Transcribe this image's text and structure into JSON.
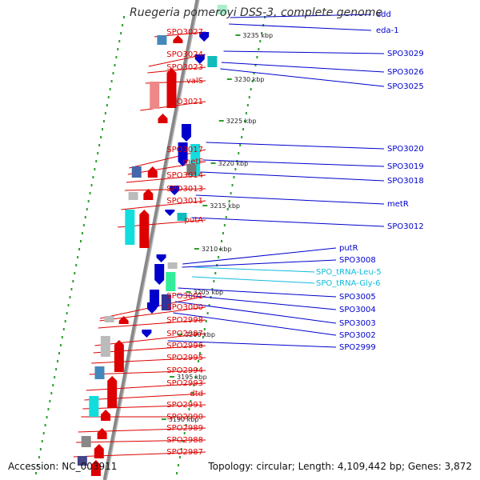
{
  "title": "Ruegeria pomeroyi DSS-3, complete genome",
  "footer": {
    "accession": "Accession: NC_003911",
    "topology": "Topology: circular; Length: 4,109,442 bp; Genes: 3,872"
  },
  "colors": {
    "forward_gene": "#dd0000",
    "reverse_gene": "#0000cc",
    "rna_gene": "#11bbdd",
    "backbone": "#888888",
    "feature_track": "#2e9e2e"
  },
  "scale_labels": [
    "3235 kbp",
    "3230 kbp",
    "3225 kbp",
    "3220 kbp",
    "3215 kbp",
    "3210 kbp",
    "3205 kbp",
    "3200 kbp",
    "3195 kbp",
    "3190 kbp"
  ],
  "forward_genes": [
    "SPO3027",
    "SPO3024",
    "SPO3023",
    "valS",
    "SPO3021",
    "SPO3017",
    "metF",
    "SPO3014",
    "SPO3013",
    "SPO3011",
    "putA",
    "SPO3001",
    "SPO3000",
    "SPO2998",
    "SPO2997",
    "SPO2996",
    "SPO2995",
    "SPO2994",
    "SPO2993",
    "dtd",
    "SPO2991",
    "SPO2990",
    "SPO2989",
    "SPO2988",
    "SPO2987"
  ],
  "reverse_genes": [
    "edd",
    "eda-1",
    "SPO3029",
    "SPO3026",
    "SPO3025",
    "SPO3020",
    "SPO3019",
    "SPO3018",
    "metR",
    "SPO3012",
    "putR",
    "SPO3008",
    "SPO3005",
    "SPO3004",
    "SPO3003",
    "SPO3002",
    "SPO2999"
  ],
  "rna_genes": [
    "SPO_tRNA-Leu-5",
    "SPO_tRNA-Gly-6"
  ]
}
